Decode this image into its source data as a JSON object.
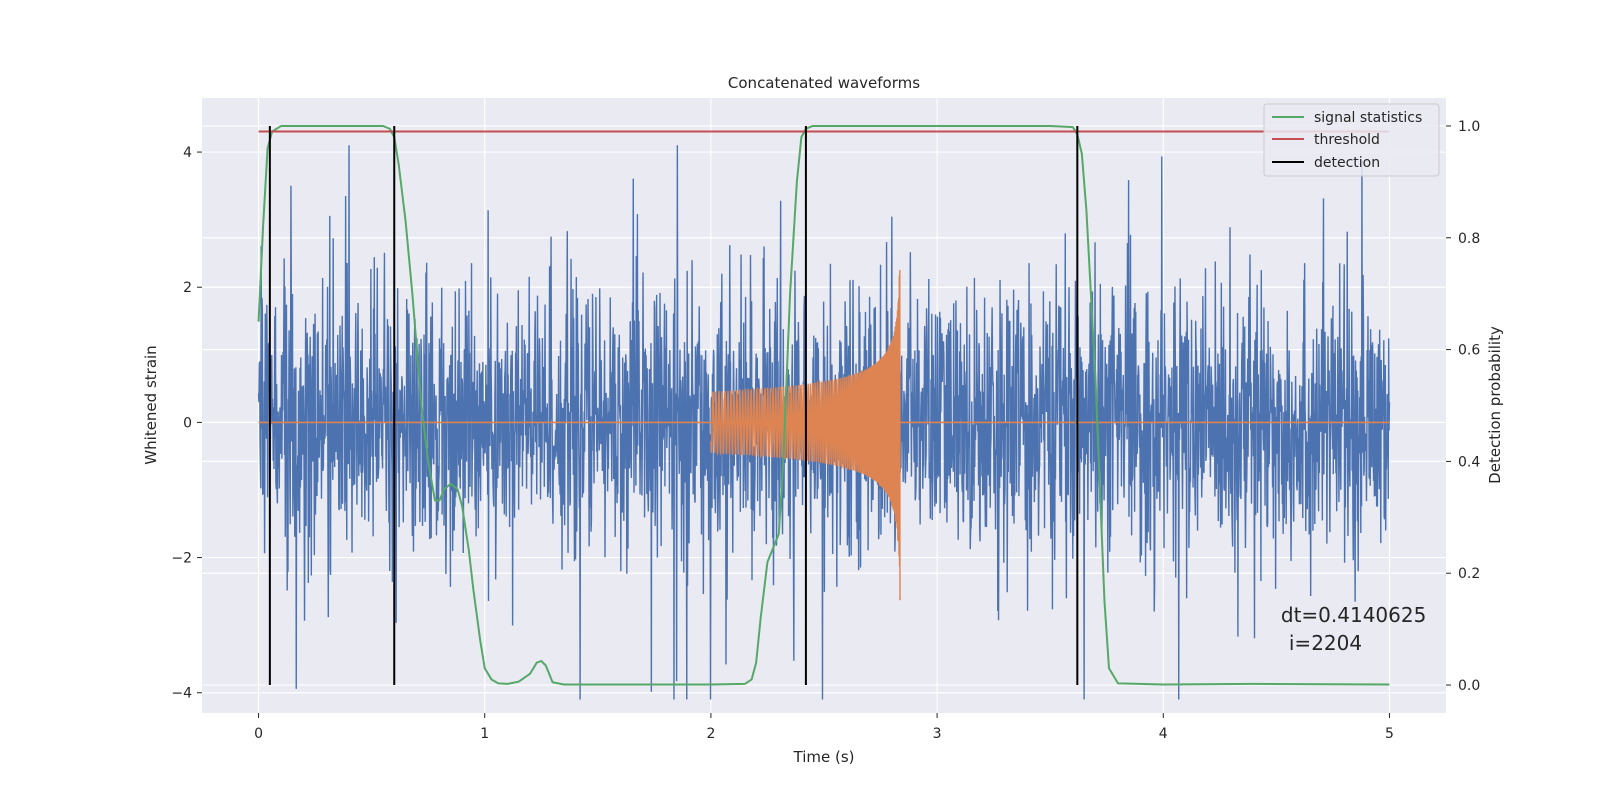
{
  "chart_data": {
    "type": "line",
    "title": "Concatenated waveforms",
    "xlabel": "Time (s)",
    "ylabel": "Whitened strain",
    "y2label": "Detection probability",
    "xlim": [
      -0.25,
      5.25
    ],
    "ylim": [
      -4.3,
      4.8
    ],
    "y2lim": [
      -0.05,
      1.05
    ],
    "x_ticks": [
      0,
      1,
      2,
      3,
      4,
      5
    ],
    "y_ticks": [
      -4,
      -2,
      0,
      2,
      4
    ],
    "y2_ticks": [
      0.0,
      0.2,
      0.4,
      0.6,
      0.8,
      1.0
    ],
    "grid": true,
    "legend_position": "top-right",
    "colors": {
      "strain": "#4c72b0",
      "template": "#dd8452",
      "signal_statistics": "#55a868",
      "threshold": "#c44e52",
      "detection": "#000000",
      "background": "#eaeaf2",
      "grid": "#ffffff"
    },
    "legend": [
      {
        "label": "signal statistics",
        "color": "#55a868"
      },
      {
        "label": "threshold",
        "color": "#c44e52"
      },
      {
        "label": "detection",
        "color": "#000000"
      }
    ],
    "strain_noise": {
      "x_start": 0,
      "x_end": 5,
      "typical_amplitude": 1.3,
      "peak_amplitude": 3.5
    },
    "template_chirp": {
      "x_start": 2.0,
      "x_end": 2.84,
      "start_amplitude": 0.45,
      "end_amplitude": 2.9,
      "baseline_range": [
        0,
        5
      ]
    },
    "signal_statistics": {
      "x": [
        0,
        0.02,
        0.04,
        0.06,
        0.1,
        0.2,
        0.3,
        0.4,
        0.5,
        0.55,
        0.58,
        0.6,
        0.62,
        0.65,
        0.68,
        0.7,
        0.72,
        0.75,
        0.78,
        0.8,
        0.82,
        0.85,
        0.88,
        0.9,
        0.93,
        0.95,
        0.98,
        1.0,
        1.03,
        1.06,
        1.1,
        1.15,
        1.2,
        1.23,
        1.25,
        1.27,
        1.3,
        1.35,
        1.5,
        2.0,
        2.15,
        2.18,
        2.2,
        2.22,
        2.25,
        2.28,
        2.3,
        2.32,
        2.35,
        2.38,
        2.4,
        2.42,
        2.45,
        2.5,
        3.0,
        3.5,
        3.6,
        3.62,
        3.64,
        3.66,
        3.68,
        3.7,
        3.72,
        3.74,
        3.76,
        3.8,
        4.0,
        4.4,
        5.0
      ],
      "y": [
        0.65,
        0.82,
        0.96,
        0.99,
        1.0,
        1.0,
        1.0,
        1.0,
        1.0,
        1.0,
        0.995,
        0.98,
        0.93,
        0.83,
        0.7,
        0.6,
        0.5,
        0.4,
        0.33,
        0.33,
        0.35,
        0.36,
        0.35,
        0.32,
        0.24,
        0.17,
        0.08,
        0.03,
        0.01,
        0.003,
        0.002,
        0.006,
        0.02,
        0.04,
        0.043,
        0.035,
        0.005,
        0.001,
        0.001,
        0.001,
        0.002,
        0.01,
        0.04,
        0.12,
        0.22,
        0.25,
        0.27,
        0.4,
        0.7,
        0.9,
        0.98,
        0.995,
        1.0,
        1.0,
        1.0,
        1.0,
        0.998,
        0.985,
        0.95,
        0.85,
        0.7,
        0.55,
        0.35,
        0.15,
        0.03,
        0.003,
        0.001,
        0.002,
        0.001
      ]
    },
    "threshold": {
      "value": 0.99,
      "x_range": [
        0,
        5
      ]
    },
    "detections": [
      0.05,
      0.6,
      2.42,
      3.62
    ],
    "annotation": {
      "line1": "dt=0.4140625",
      "line2": "i=2204",
      "x": 4.52,
      "y": -2.95
    }
  }
}
